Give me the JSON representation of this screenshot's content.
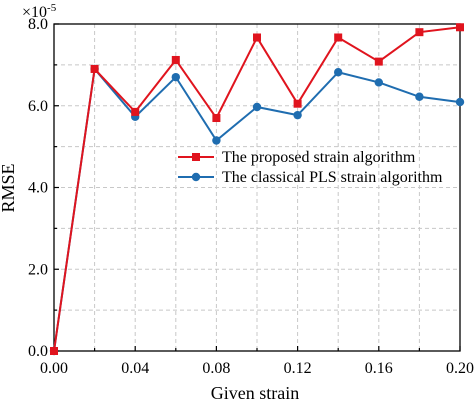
{
  "chart_data": {
    "type": "line",
    "xlabel": "Given strain",
    "ylabel": "RMSE",
    "y_multiplier_label": "×10",
    "y_multiplier_exp": "-5",
    "xlim": [
      0,
      0.2
    ],
    "ylim": [
      0,
      8.0
    ],
    "x_ticks": [
      0,
      0.04,
      0.08,
      0.12,
      0.16,
      0.2
    ],
    "x_tick_labels": [
      "0.00",
      "0.04",
      "0.08",
      "0.12",
      "0.16",
      "0.20"
    ],
    "y_ticks": [
      0,
      2,
      4,
      6,
      8
    ],
    "y_tick_labels": [
      "0.0",
      "2.0",
      "4.0",
      "6.0",
      "8.0"
    ],
    "grid": true,
    "legend_position": "center-right",
    "x": [
      0,
      0.02,
      0.04,
      0.06,
      0.08,
      0.1,
      0.12,
      0.14,
      0.16,
      0.18,
      0.2
    ],
    "series": [
      {
        "name": "The proposed strain algorithm",
        "color": "#e0141e",
        "marker": "square",
        "values": [
          0,
          6.9,
          5.85,
          7.12,
          5.7,
          7.67,
          6.05,
          7.67,
          7.08,
          7.8,
          7.92
        ]
      },
      {
        "name": "The classical PLS strain algorithm",
        "color": "#1f6db0",
        "marker": "circle",
        "values": [
          0,
          6.9,
          5.73,
          6.7,
          5.15,
          5.97,
          5.77,
          6.82,
          6.57,
          6.22,
          6.09
        ]
      }
    ]
  }
}
